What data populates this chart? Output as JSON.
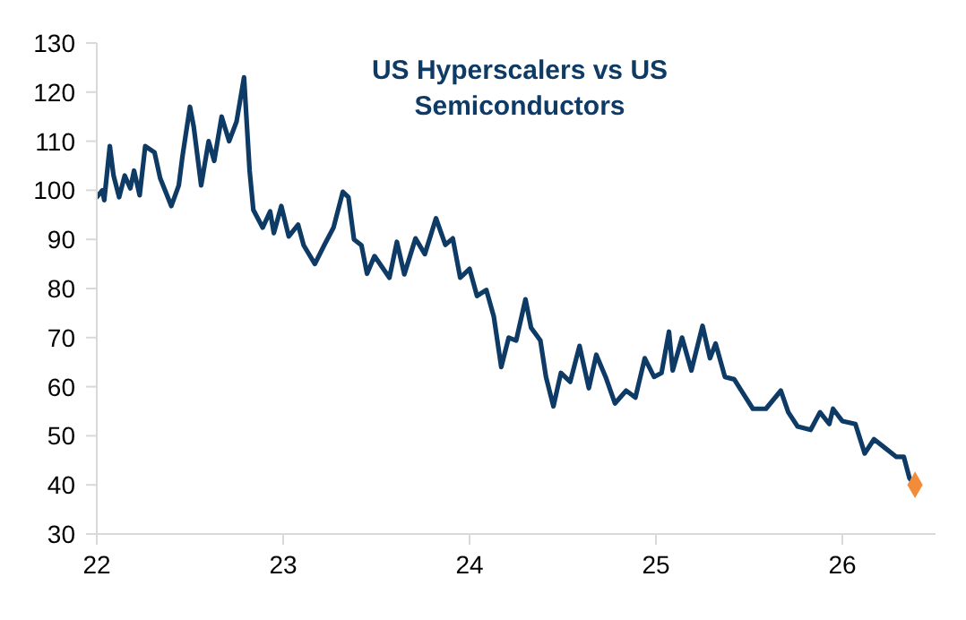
{
  "chart_data": {
    "type": "line",
    "title": "US Hyperscalers vs US Semiconductors",
    "xlim": [
      22,
      26.5
    ],
    "xticks": [
      22,
      23,
      24,
      25,
      26
    ],
    "ylim": [
      30,
      130
    ],
    "yticks": [
      30,
      40,
      50,
      60,
      70,
      80,
      90,
      100,
      110,
      120,
      130
    ],
    "grid": false,
    "series": [
      {
        "color": "#0e3a66",
        "line_style": "solid",
        "x": [
          22.0,
          22.03,
          22.04,
          22.07,
          22.09,
          22.12,
          22.15,
          22.18,
          22.2,
          22.23,
          22.26,
          22.31,
          22.34,
          22.4,
          22.44,
          22.46,
          22.5,
          22.52,
          22.56,
          22.6,
          22.63,
          22.67,
          22.71,
          22.75,
          22.79,
          22.82,
          22.84,
          22.89,
          22.93,
          22.95,
          22.99,
          23.03,
          23.08,
          23.11,
          23.17,
          23.22,
          23.27,
          23.32,
          23.35,
          23.38,
          23.42,
          23.45,
          23.49,
          23.57,
          23.61,
          23.65,
          23.71,
          23.76,
          23.82,
          23.87,
          23.91,
          23.95,
          24.0,
          24.04,
          24.09,
          24.13,
          24.17,
          24.21,
          24.25,
          24.3,
          24.33,
          24.38,
          24.41,
          24.45,
          24.49,
          24.54,
          24.59,
          24.64,
          24.68,
          24.73,
          24.78,
          24.84,
          24.89,
          24.94,
          24.99,
          25.03,
          25.07,
          25.09,
          25.14,
          25.19,
          25.25,
          25.29,
          25.32,
          25.37,
          25.42,
          25.47,
          25.52,
          25.59,
          25.67,
          25.71,
          25.76,
          25.83,
          25.88,
          25.93,
          25.95,
          26.0,
          26.07,
          26.12,
          26.17,
          26.23,
          26.29,
          26.33,
          26.36,
          26.39
        ],
        "values": [
          98.6,
          100,
          98,
          109,
          103,
          98.6,
          103,
          100.4,
          104,
          99,
          109,
          107.7,
          102.5,
          96.8,
          101,
          107,
          117,
          113,
          101,
          110,
          106,
          115,
          110,
          114,
          123,
          104,
          96,
          92.4,
          95.7,
          91.3,
          96.8,
          90.6,
          93,
          88.8,
          85,
          88.8,
          92.4,
          99.7,
          98.6,
          90,
          88.8,
          83,
          86.6,
          82.2,
          89.5,
          82.9,
          90.2,
          87,
          94.3,
          88.9,
          90.2,
          82.2,
          84,
          78.5,
          79.7,
          74.3,
          64,
          70,
          69.4,
          77.8,
          72,
          69.4,
          62,
          56,
          62.8,
          61,
          68.3,
          59.7,
          66.5,
          62,
          56.6,
          59.2,
          57.8,
          65.8,
          62,
          62.8,
          71.2,
          63.3,
          70,
          63.3,
          72.4,
          65.8,
          68.8,
          62,
          61.5,
          58.5,
          55.5,
          55.5,
          59.2,
          54.8,
          51.9,
          51.2,
          54.8,
          52.4,
          55.5,
          53,
          52.4,
          46.4,
          49.3,
          47.5,
          45.7,
          45.7,
          41.4,
          40
        ]
      },
      {
        "type": "scatter",
        "color": "#f28c38",
        "marker": "diamond",
        "x": [
          26.39
        ],
        "values": [
          40
        ]
      }
    ]
  }
}
